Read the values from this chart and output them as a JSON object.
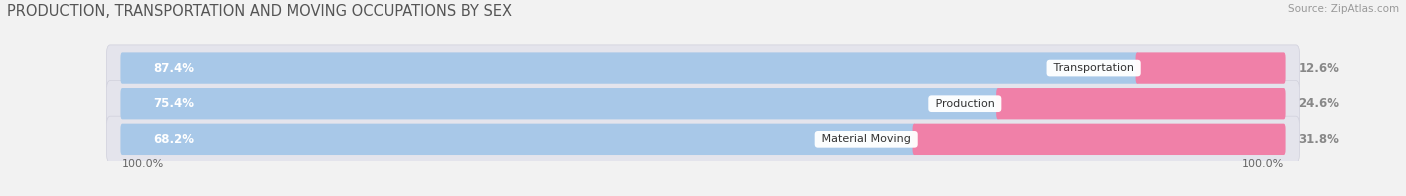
{
  "title": "PRODUCTION, TRANSPORTATION AND MOVING OCCUPATIONS BY SEX",
  "source": "Source: ZipAtlas.com",
  "categories": [
    "Transportation",
    "Production",
    "Material Moving"
  ],
  "male_values": [
    87.4,
    75.4,
    68.2
  ],
  "female_values": [
    12.6,
    24.6,
    31.8
  ],
  "male_color": "#a8c8e8",
  "female_color": "#f080a8",
  "bg_color": "#f2f2f2",
  "bar_bg_color": "#e4e4ec",
  "bar_bg_edge": "#d0d0dc",
  "axis_label_left": "100.0%",
  "axis_label_right": "100.0%",
  "title_fontsize": 10.5,
  "source_fontsize": 7.5,
  "bar_label_fontsize": 8.5,
  "category_fontsize": 8,
  "legend_fontsize": 8.5,
  "bar_height": 0.58,
  "xlim_left": -5,
  "xlim_right": 110
}
